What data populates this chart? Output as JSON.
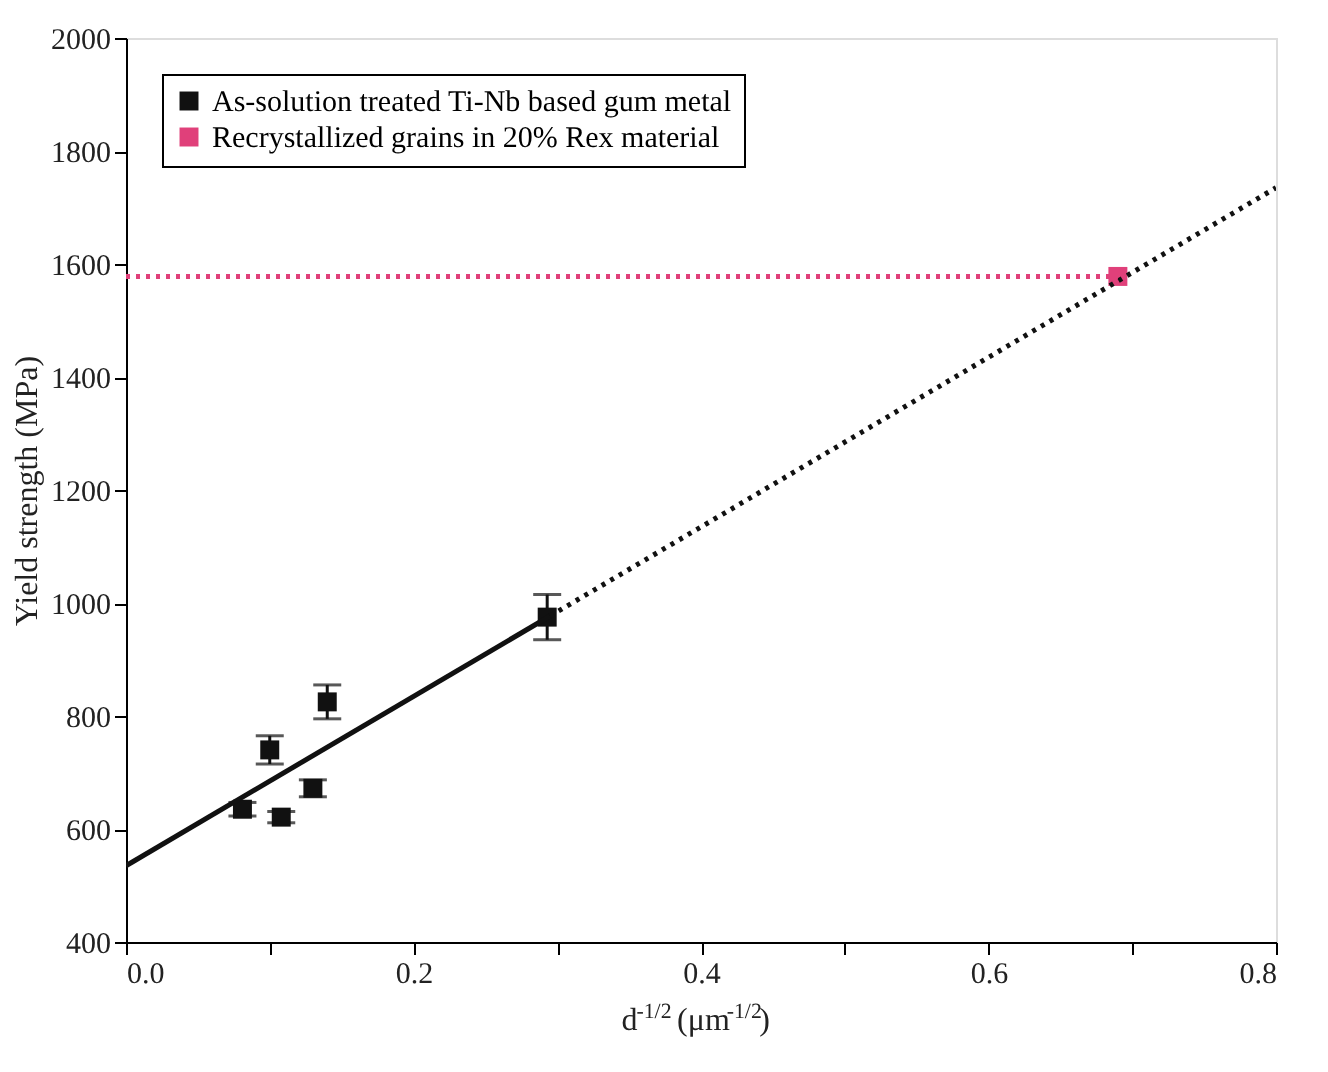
{
  "chart_data": {
    "type": "scatter",
    "xlabel": "d$^{-1/2}$ (μm$^{-1/2}$)",
    "ylabel": "Yield strength (MPa)",
    "xlim": [
      0,
      0.8
    ],
    "xticks": [
      {
        "value": 0,
        "label": "0.0"
      },
      {
        "value": 0.1,
        "label": null
      },
      0.2,
      {
        "value": 0.3,
        "label": null
      },
      0.4,
      {
        "value": 0.5,
        "label": null
      },
      0.6,
      {
        "value": 0.7,
        "label": null
      },
      0.8
    ],
    "ylim": [
      400,
      2000
    ],
    "yticks": [
      400,
      600,
      800,
      1000,
      1200,
      1400,
      1600,
      1800,
      2000
    ],
    "grid": false,
    "legend": "top left",
    "series": [
      {
        "name": "As-solution treated Ti-Nb based gum metal",
        "marker": "square",
        "color": "#111111",
        "x": [
          0.081,
          0.1,
          0.108,
          0.13,
          0.14,
          0.293
        ],
        "values": [
          635,
          740,
          621,
          672,
          825,
          975
        ],
        "errors": [
          12,
          25,
          10,
          15,
          30,
          40
        ]
      },
      {
        "name": "Recrystallized grains in 20% Rex material",
        "marker": "square",
        "color": "#e0407a",
        "x": [
          0.69
        ],
        "values": [
          1578
        ]
      },
      {
        "type": "line",
        "color": "#111111",
        "line_style": "solid",
        "x": [
          0,
          0.295
        ],
        "values": [
          535,
          977
        ]
      },
      {
        "type": "line",
        "color": "#111111",
        "line_style": "dotted",
        "x": [
          0.295,
          0.8
        ],
        "values": [
          977,
          1735
        ]
      },
      {
        "type": "line",
        "color": "#e0407a",
        "line_style": "dotted",
        "x": [
          0,
          0.69
        ],
        "values": [
          1578,
          1578
        ]
      }
    ]
  }
}
